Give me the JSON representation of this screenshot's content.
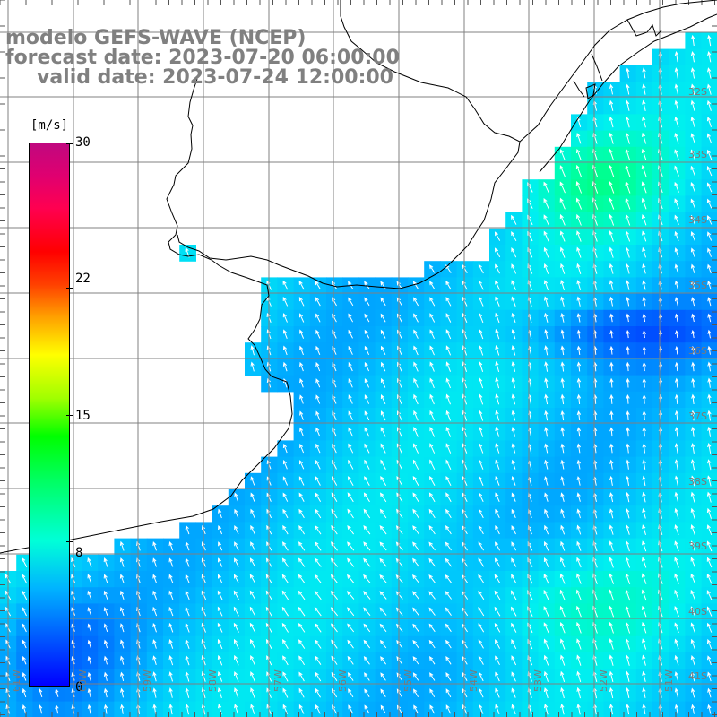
{
  "title": {
    "line1": "modelo GEFS-WAVE (NCEP)",
    "line2": "forecast date: 2023-07-20 06:00:00",
    "line3": "valid date: 2023-07-24 12:00:00"
  },
  "colorbar": {
    "unit": "[m/s]",
    "min": 0,
    "max": 30,
    "ticks": [
      "30",
      "22",
      "15",
      "8",
      "0"
    ],
    "tick_values": [
      30,
      22,
      15,
      8,
      0
    ]
  },
  "map": {
    "lat_labels": [
      "32S",
      "33S",
      "34S",
      "35S",
      "36S",
      "37S",
      "38S",
      "39S",
      "40S",
      "41S"
    ],
    "lon_labels": [
      "61W",
      "60W",
      "59W",
      "58W",
      "57W",
      "56W",
      "55W",
      "54W",
      "53W",
      "52W",
      "51W"
    ],
    "colors": {
      "land": "#ffffff",
      "coast": "#000000",
      "grid": "#808080",
      "arrow": "#ffffff"
    }
  }
}
